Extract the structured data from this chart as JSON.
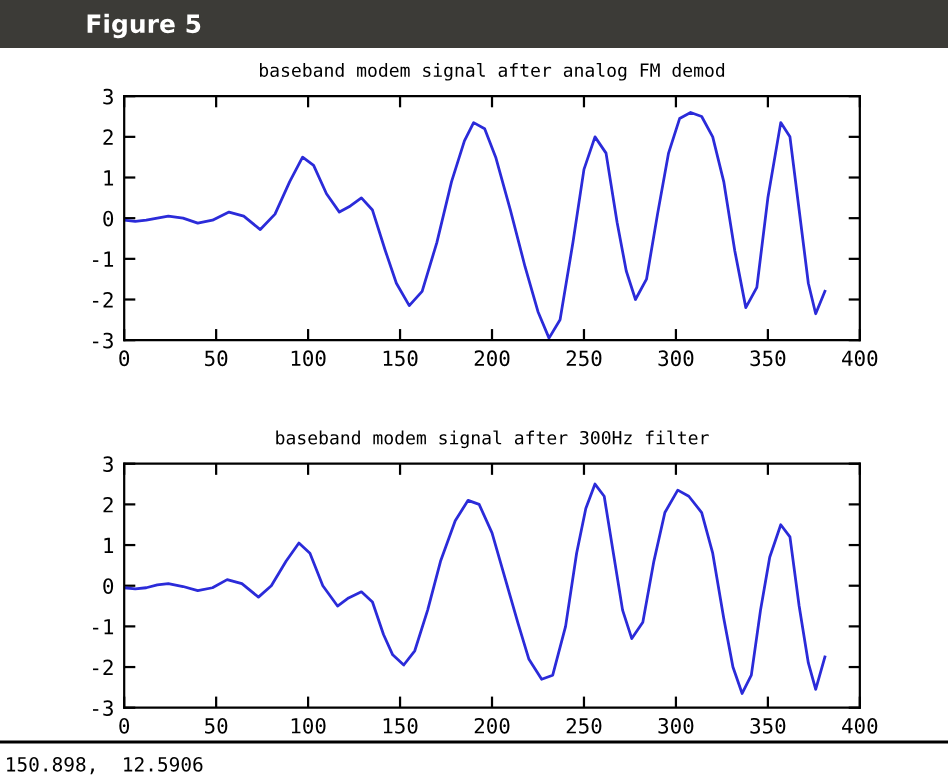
{
  "chart_data": [
    {
      "type": "line",
      "title": "baseband modem signal after analog FM demod",
      "annotations": [
        "Figure 5"
      ],
      "xlim": [
        0,
        400
      ],
      "ylim": [
        -3,
        3
      ],
      "xticks": [
        0,
        50,
        100,
        150,
        200,
        250,
        300,
        350,
        400
      ],
      "yticks": [
        -3,
        -2,
        -1,
        0,
        1,
        2,
        3
      ],
      "grid": false,
      "legend": false,
      "series": [
        {
          "color": "#2b2bd9",
          "x": [
            0,
            6,
            12,
            18,
            24,
            32,
            40,
            48,
            57,
            65,
            74,
            82,
            90,
            97,
            103,
            110,
            117,
            123,
            129,
            135,
            142,
            148,
            155,
            162,
            170,
            178,
            185,
            190,
            196,
            202,
            210,
            218,
            225,
            231,
            237,
            244,
            250,
            256,
            262,
            268,
            273,
            278,
            284,
            290,
            296,
            302,
            308,
            314,
            320,
            326,
            332,
            338,
            344,
            350,
            357,
            362,
            367,
            372,
            376,
            381
          ],
          "values": [
            -0.05,
            -0.08,
            -0.05,
            0.0,
            0.05,
            0.0,
            -0.12,
            -0.05,
            0.15,
            0.05,
            -0.28,
            0.1,
            0.9,
            1.5,
            1.3,
            0.6,
            0.15,
            0.3,
            0.5,
            0.2,
            -0.8,
            -1.6,
            -2.15,
            -1.8,
            -0.6,
            0.9,
            1.9,
            2.35,
            2.2,
            1.5,
            0.2,
            -1.2,
            -2.3,
            -2.95,
            -2.5,
            -0.6,
            1.2,
            2.0,
            1.6,
            -0.1,
            -1.3,
            -2.0,
            -1.5,
            0.1,
            1.6,
            2.45,
            2.6,
            2.5,
            2.0,
            0.9,
            -0.8,
            -2.2,
            -1.7,
            0.5,
            2.35,
            2.0,
            0.2,
            -1.6,
            -2.35,
            -1.8
          ]
        }
      ]
    },
    {
      "type": "line",
      "title": "baseband modem signal after 300Hz filter",
      "annotations": [
        "150.898,  12.5906"
      ],
      "xlim": [
        0,
        400
      ],
      "ylim": [
        -3,
        3
      ],
      "xticks": [
        0,
        50,
        100,
        150,
        200,
        250,
        300,
        350,
        400
      ],
      "yticks": [
        -3,
        -2,
        -1,
        0,
        1,
        2,
        3
      ],
      "grid": false,
      "legend": false,
      "series": [
        {
          "color": "#2b2bd9",
          "x": [
            0,
            6,
            12,
            18,
            24,
            32,
            40,
            48,
            56,
            64,
            73,
            80,
            88,
            95,
            101,
            108,
            116,
            122,
            129,
            135,
            141,
            146,
            152,
            158,
            165,
            172,
            180,
            187,
            193,
            200,
            207,
            214,
            220,
            227,
            233,
            240,
            246,
            251,
            256,
            261,
            266,
            271,
            276,
            282,
            288,
            294,
            301,
            307,
            314,
            320,
            326,
            331,
            336,
            341,
            346,
            351,
            357,
            362,
            367,
            372,
            376,
            381
          ],
          "values": [
            -0.05,
            -0.08,
            -0.05,
            0.02,
            0.05,
            -0.02,
            -0.12,
            -0.05,
            0.15,
            0.05,
            -0.28,
            0.0,
            0.6,
            1.05,
            0.8,
            0.0,
            -0.5,
            -0.3,
            -0.15,
            -0.4,
            -1.2,
            -1.7,
            -1.95,
            -1.6,
            -0.6,
            0.6,
            1.6,
            2.1,
            2.0,
            1.3,
            0.2,
            -0.9,
            -1.8,
            -2.3,
            -2.2,
            -1.0,
            0.8,
            1.9,
            2.5,
            2.2,
            0.8,
            -0.6,
            -1.3,
            -0.9,
            0.6,
            1.8,
            2.35,
            2.2,
            1.8,
            0.8,
            -0.8,
            -2.0,
            -2.65,
            -2.2,
            -0.6,
            0.7,
            1.5,
            1.2,
            -0.5,
            -1.9,
            -2.55,
            -1.75
          ]
        }
      ]
    }
  ]
}
